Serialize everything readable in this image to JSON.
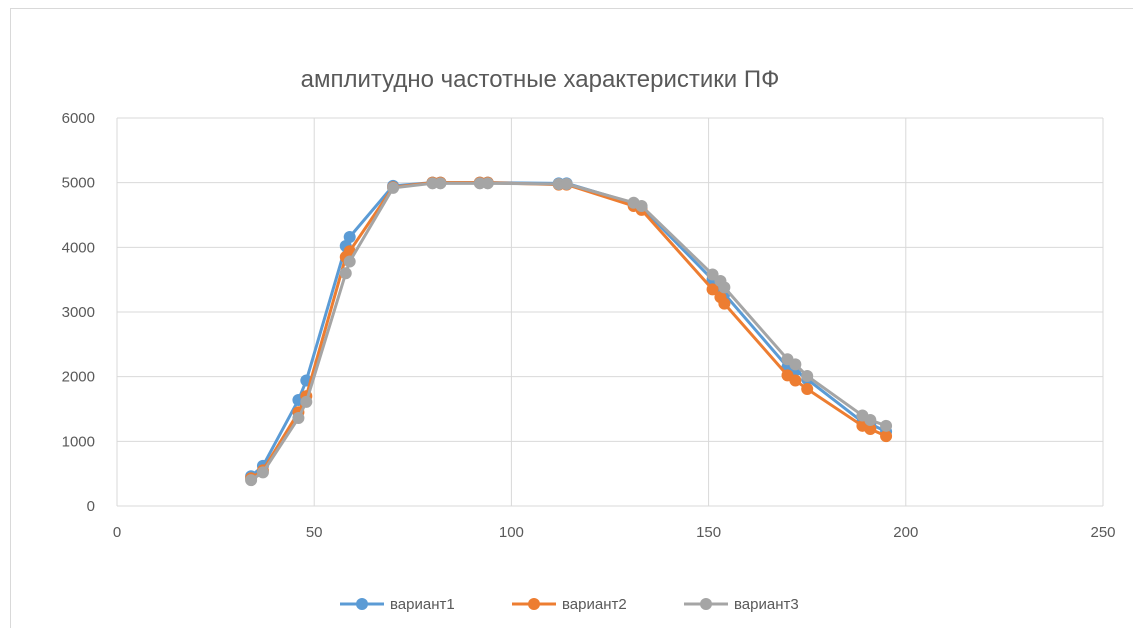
{
  "chart_data": {
    "type": "scatter",
    "title": "амплитудно частотные характеристики  ПФ",
    "xlabel": "",
    "ylabel": "",
    "xlim": [
      0,
      250
    ],
    "ylim": [
      0,
      6000
    ],
    "xticks": [
      0,
      50,
      100,
      150,
      200,
      250
    ],
    "yticks": [
      0,
      1000,
      2000,
      3000,
      4000,
      5000,
      6000
    ],
    "grid": true,
    "legend_position": "bottom",
    "series": [
      {
        "name": "вариант1",
        "color": "#5b9bd5",
        "x": [
          34,
          37,
          46,
          48,
          58,
          59,
          70,
          80,
          82,
          92,
          94,
          112,
          114,
          131,
          133,
          151,
          153,
          154,
          170,
          172,
          175,
          189,
          191,
          195
        ],
        "y": [
          460,
          620,
          1640,
          1940,
          4020,
          4160,
          4950,
          5000,
          5000,
          5000,
          5000,
          4990,
          4990,
          4680,
          4620,
          3500,
          3400,
          3280,
          2150,
          2100,
          1960,
          1300,
          1270,
          1150
        ]
      },
      {
        "name": "вариант2",
        "color": "#ed7d31",
        "x": [
          34,
          37,
          46,
          48,
          58,
          59,
          70,
          80,
          82,
          92,
          94,
          112,
          114,
          131,
          133,
          151,
          153,
          154,
          170,
          172,
          175,
          189,
          191,
          195
        ],
        "y": [
          430,
          550,
          1450,
          1700,
          3850,
          3940,
          4930,
          5000,
          5000,
          5000,
          5000,
          4970,
          4970,
          4640,
          4580,
          3350,
          3230,
          3130,
          2020,
          1940,
          1810,
          1240,
          1190,
          1080
        ]
      },
      {
        "name": "вариант3",
        "color": "#a5a5a5",
        "x": [
          34,
          37,
          46,
          48,
          58,
          59,
          70,
          80,
          82,
          92,
          94,
          112,
          114,
          131,
          133,
          151,
          153,
          154,
          170,
          172,
          175,
          189,
          191,
          195
        ],
        "y": [
          400,
          520,
          1360,
          1610,
          3600,
          3780,
          4920,
          4990,
          4990,
          4990,
          4990,
          4980,
          4980,
          4690,
          4640,
          3580,
          3480,
          3380,
          2270,
          2190,
          2010,
          1400,
          1330,
          1240
        ]
      }
    ]
  }
}
